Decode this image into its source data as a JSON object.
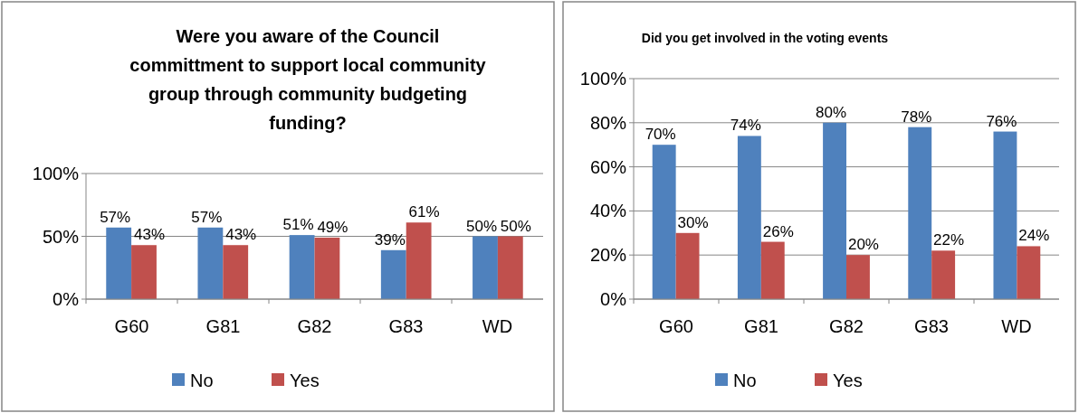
{
  "chart_data": [
    {
      "type": "bar",
      "title": "Were you aware of the Council committment to support local community group through community budgeting funding?",
      "categories": [
        "G60",
        "G81",
        "G82",
        "G83",
        "WD"
      ],
      "series": [
        {
          "name": "No",
          "color": "#4f81bd",
          "values": [
            57,
            57,
            51,
            39,
            50
          ],
          "value_labels": [
            "57%",
            "57%",
            "51%",
            "39%",
            "50%"
          ]
        },
        {
          "name": "Yes",
          "color": "#c0504d",
          "values": [
            43,
            43,
            49,
            61,
            50
          ],
          "value_labels": [
            "43%",
            "43%",
            "49%",
            "61%",
            "50%"
          ]
        }
      ],
      "ylim": [
        0,
        100
      ],
      "yticks": [
        {
          "value": 0,
          "label": "0%"
        },
        {
          "value": 50,
          "label": "50%"
        },
        {
          "value": 100,
          "label": "100%"
        }
      ],
      "grid": "y",
      "legend": "bottom"
    },
    {
      "type": "bar",
      "title": "Did you get involved in the voting events",
      "categories": [
        "G60",
        "G81",
        "G82",
        "G83",
        "WD"
      ],
      "series": [
        {
          "name": "No",
          "color": "#4f81bd",
          "values": [
            70,
            74,
            80,
            78,
            76
          ],
          "value_labels": [
            "70%",
            "74%",
            "80%",
            "78%",
            "76%"
          ]
        },
        {
          "name": "Yes",
          "color": "#c0504d",
          "values": [
            30,
            26,
            20,
            22,
            24
          ],
          "value_labels": [
            "30%",
            "26%",
            "20%",
            "22%",
            "24%"
          ]
        }
      ],
      "ylim": [
        0,
        100
      ],
      "yticks": [
        {
          "value": 0,
          "label": "0%"
        },
        {
          "value": 20,
          "label": "20%"
        },
        {
          "value": 40,
          "label": "40%"
        },
        {
          "value": 60,
          "label": "60%"
        },
        {
          "value": 80,
          "label": "80%"
        },
        {
          "value": 100,
          "label": "100%"
        }
      ],
      "grid": "y",
      "legend": "bottom"
    }
  ]
}
